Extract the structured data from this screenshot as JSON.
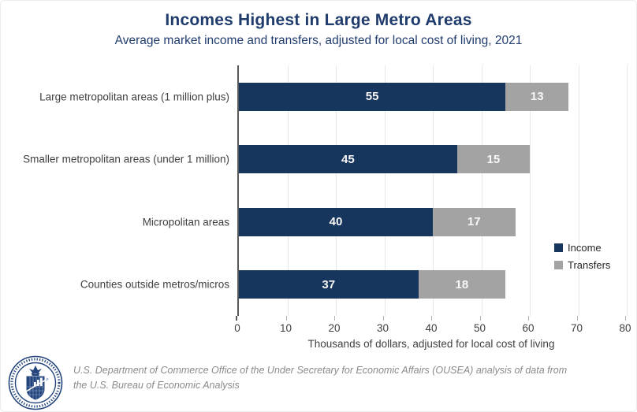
{
  "title": "Incomes Highest in Large Metro Areas",
  "subtitle": "Average market income and transfers, adjusted for local cost of living, 2021",
  "chart_data": {
    "type": "bar",
    "orientation": "horizontal",
    "stacked": true,
    "categories": [
      "Large metropolitan areas (1 million plus)",
      "Smaller metropolitan areas (under 1 million)",
      "Micropolitan areas",
      "Counties outside metros/micros"
    ],
    "series": [
      {
        "name": "Income",
        "color": "#17365d",
        "values": [
          55,
          45,
          40,
          37
        ]
      },
      {
        "name": "Transfers",
        "color": "#a3a3a3",
        "values": [
          13,
          15,
          17,
          18
        ]
      }
    ],
    "xlabel": "Thousands of dollars, adjusted for local cost of living",
    "xlim": [
      0,
      80
    ],
    "xticks": [
      0,
      10,
      20,
      30,
      40,
      50,
      60,
      70,
      80
    ],
    "grid": true,
    "legend_position": "right",
    "value_labels": "inside-white"
  },
  "legend": {
    "items": [
      {
        "label": "Income",
        "color": "#17365d"
      },
      {
        "label": "Transfers",
        "color": "#a3a3a3"
      }
    ]
  },
  "footer": {
    "source": "U.S. Department of Commerce Office of the Under Secretary for Economic Affairs (OUSEA) analysis of data from the U.S. Bureau of Economic Analysis",
    "seal_icon": "commerce-seal-icon"
  },
  "colors": {
    "title_navy": "#1f3c6d",
    "bar_navy": "#17365d",
    "bar_gray": "#a3a3a3",
    "axis_line": "#595959",
    "gridline": "#e8e8e8"
  }
}
